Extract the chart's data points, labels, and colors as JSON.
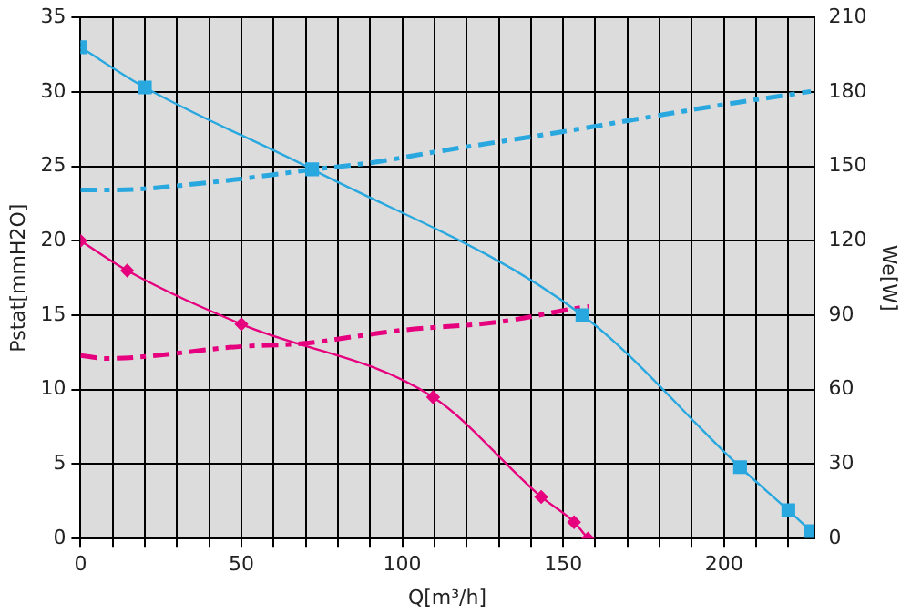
{
  "chart_data": {
    "type": "line",
    "xlabel": "Q[m³/h]",
    "ylabel": "Pstat[mmH2O]",
    "y2label": "We[W]",
    "xlim": [
      0,
      228
    ],
    "xticks": [
      0,
      {
        "value": 10,
        "label": null
      },
      {
        "value": 20,
        "label": null
      },
      {
        "value": 30,
        "label": null
      },
      {
        "value": 40,
        "label": null
      },
      50,
      {
        "value": 60,
        "label": null
      },
      {
        "value": 70,
        "label": null
      },
      {
        "value": 80,
        "label": null
      },
      {
        "value": 90,
        "label": null
      },
      100,
      {
        "value": 110,
        "label": null
      },
      {
        "value": 120,
        "label": null
      },
      {
        "value": 130,
        "label": null
      },
      {
        "value": 140,
        "label": null
      },
      150,
      {
        "value": 160,
        "label": null
      },
      {
        "value": 170,
        "label": null
      },
      {
        "value": 180,
        "label": null
      },
      {
        "value": 190,
        "label": null
      },
      200,
      {
        "value": 210,
        "label": null
      },
      {
        "value": 220,
        "label": null
      }
    ],
    "ylim": [
      0,
      35
    ],
    "yticks": [
      0,
      5,
      10,
      15,
      20,
      25,
      30,
      35
    ],
    "y2lim": [
      0,
      210
    ],
    "y2ticks": [
      0,
      30,
      60,
      90,
      120,
      150,
      180,
      210
    ],
    "grid": true,
    "legend": false,
    "series": [
      {
        "color": "#29a8e0",
        "marker": "square",
        "line_style": "solid",
        "x": [
          0,
          20,
          72,
          156,
          205,
          220,
          227
        ],
        "values": [
          33,
          30.3,
          24.8,
          15,
          4.8,
          1.9,
          0.5
        ]
      },
      {
        "color": "#e6007e",
        "marker": "diamond",
        "line_style": "solid",
        "x": [
          0,
          14.5,
          50,
          109.6,
          143.2,
          153.4,
          157.7
        ],
        "values": [
          20,
          18,
          14.4,
          9.5,
          2.8,
          1.1,
          0
        ]
      },
      {
        "color": "#29a8e0",
        "marker": "none",
        "line_style": "dashed",
        "axis": "y2",
        "x": [
          0,
          10,
          40,
          72,
          90,
          111,
          150,
          175,
          198,
          227
        ],
        "values": [
          140.5,
          140.5,
          143.5,
          148.7,
          151.4,
          156,
          164,
          169.5,
          174.5,
          180.2
        ]
      },
      {
        "color": "#e6007e",
        "marker": "none",
        "line_style": "dashed",
        "axis": "y2",
        "x": [
          0,
          8,
          50,
          69,
          90,
          100,
          130,
          155,
          158
        ],
        "values": [
          73.8,
          72.6,
          77.4,
          78.6,
          82.3,
          84,
          87.3,
          93,
          93.5
        ]
      }
    ]
  }
}
